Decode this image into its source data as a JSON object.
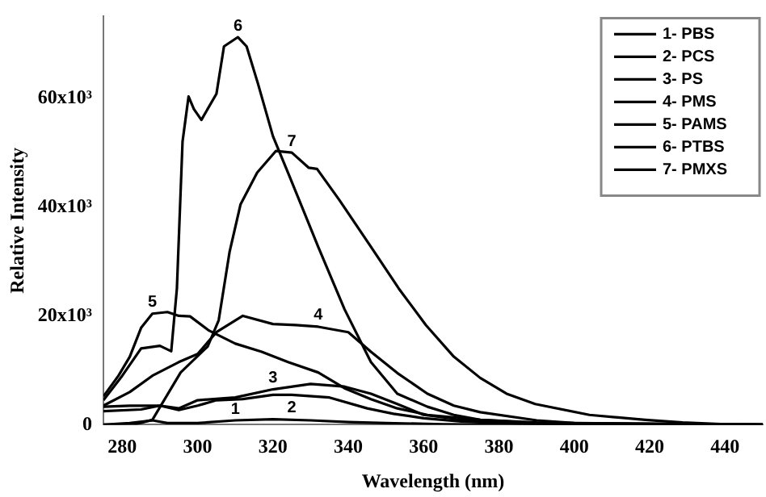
{
  "chart_data": {
    "type": "line",
    "xlabel": "Wavelength (nm)",
    "ylabel": "Relative Intensity",
    "xlim": [
      275,
      450
    ],
    "xticks": [
      280,
      300,
      320,
      340,
      360,
      380,
      400,
      420,
      440
    ],
    "ylim": [
      0,
      75000
    ],
    "yticks": [
      0,
      {
        "value": 20000,
        "label": "20x10³"
      },
      {
        "value": 40000,
        "label": "40x10³"
      },
      {
        "value": 60000,
        "label": "60x10³"
      }
    ],
    "grid": false,
    "legend": "top right",
    "marker": "none",
    "line_style": "solid",
    "series": [
      {
        "name": "1- PBS",
        "color": "#000000",
        "x": [
          275,
          282,
          288,
          292,
          300,
          310,
          320,
          330,
          340,
          350,
          365,
          380,
          400,
          450
        ],
        "values": [
          0,
          300,
          800,
          300,
          300,
          800,
          1000,
          800,
          500,
          300,
          100,
          0,
          0,
          0
        ]
      },
      {
        "name": "2- PCS",
        "color": "#000000",
        "x": [
          275,
          282,
          290,
          295,
          300,
          305,
          312,
          320,
          325,
          335,
          345,
          352,
          360,
          370,
          380,
          400,
          450
        ],
        "values": [
          3300,
          3500,
          3500,
          2700,
          3500,
          4500,
          4700,
          5500,
          5500,
          5000,
          3000,
          2000,
          1200,
          600,
          300,
          100,
          0
        ]
      },
      {
        "name": "3- PS",
        "color": "#000000",
        "x": [
          275,
          285,
          290,
          295,
          300,
          310,
          320,
          330,
          339,
          346,
          353,
          360,
          375,
          390,
          450
        ],
        "values": [
          2500,
          2800,
          3500,
          3000,
          4500,
          5000,
          6500,
          7500,
          7000,
          5700,
          3800,
          1800,
          500,
          100,
          0
        ]
      },
      {
        "name": "4- PMS",
        "color": "#000000",
        "x": [
          275,
          282,
          288,
          295,
          300,
          305,
          312,
          320,
          326,
          332,
          340,
          346,
          353,
          361,
          368,
          375,
          390,
          400,
          450
        ],
        "values": [
          3500,
          6000,
          9000,
          11500,
          13000,
          17000,
          20000,
          18500,
          18300,
          18000,
          17000,
          13400,
          9500,
          5700,
          3500,
          2300,
          800,
          300,
          0
        ]
      },
      {
        "name": "5- PAMS",
        "color": "#000000",
        "x": [
          275,
          279,
          282,
          285,
          288,
          292,
          295,
          298,
          303,
          310,
          317,
          324,
          332,
          339,
          346,
          353,
          361,
          375,
          390,
          400,
          450
        ],
        "values": [
          5200,
          9000,
          12500,
          17800,
          20400,
          20700,
          20000,
          19900,
          17300,
          14900,
          13400,
          11500,
          9600,
          6700,
          4700,
          3000,
          1800,
          900,
          400,
          300,
          0
        ]
      },
      {
        "name": "6- PTBS",
        "color": "#000000",
        "x": [
          275,
          280,
          285,
          290,
          293,
          294.5,
          296,
          297.6,
          299,
          301,
          305,
          307,
          310.7,
          313,
          316,
          320,
          324,
          332,
          339,
          346,
          353,
          361,
          368,
          375,
          390,
          400,
          450
        ],
        "values": [
          4500,
          9000,
          14000,
          14500,
          13500,
          25000,
          52000,
          60300,
          58000,
          56000,
          60800,
          69500,
          71200,
          69500,
          62700,
          53000,
          46300,
          32700,
          21200,
          11500,
          5700,
          3300,
          1800,
          900,
          300,
          200,
          0
        ]
      },
      {
        "name": "7- PMXS",
        "color": "#000000",
        "x": [
          275,
          283,
          288,
          295.5,
          302.7,
          305.6,
          308.5,
          311.4,
          315.8,
          320.8,
          325,
          329.5,
          331.7,
          337.5,
          346,
          353.4,
          360.6,
          368,
          375,
          382,
          389.6,
          404,
          418.8,
          428.7,
          440,
          450
        ],
        "values": [
          0,
          0,
          900,
          9600,
          14400,
          19200,
          31800,
          40500,
          46300,
          50300,
          50000,
          47200,
          47000,
          41400,
          32700,
          25000,
          18300,
          12500,
          8600,
          5700,
          3800,
          1800,
          900,
          400,
          100,
          0
        ]
      }
    ],
    "annotations": [
      {
        "text": "1",
        "x": 310,
        "y": 800
      },
      {
        "text": "2",
        "x": 325,
        "y": 5500
      },
      {
        "text": "3",
        "x": 320,
        "y": 6500
      },
      {
        "text": "4",
        "x": 332,
        "y": 18000
      },
      {
        "text": "5",
        "x": 288,
        "y": 20400
      },
      {
        "text": "6",
        "x": 310.7,
        "y": 71200
      },
      {
        "text": "7",
        "x": 325,
        "y": 50000
      }
    ]
  }
}
